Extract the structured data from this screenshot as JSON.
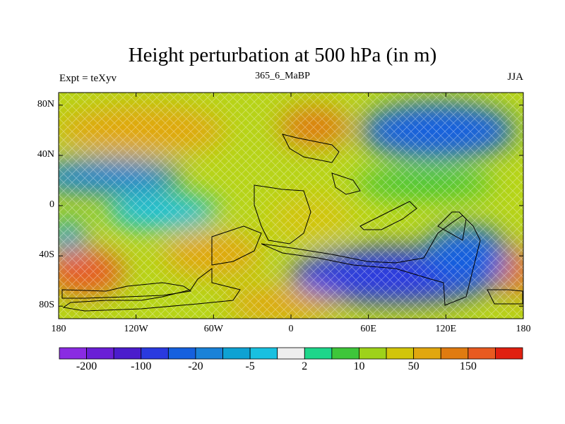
{
  "title": "Height perturbation at 500 hPa (in m)",
  "left_label": "Expt = teXyv",
  "center_label": "365_6_MaBP",
  "right_label": "JJA",
  "map": {
    "lat_ticks": [
      {
        "label": "80N",
        "value": 80
      },
      {
        "label": "40N",
        "value": 40
      },
      {
        "label": "0",
        "value": 0
      },
      {
        "label": "40S",
        "value": -40
      },
      {
        "label": "80S",
        "value": -80
      }
    ],
    "lon_ticks": [
      {
        "label": "180",
        "value": -180
      },
      {
        "label": "120W",
        "value": -120
      },
      {
        "label": "60W",
        "value": -60
      },
      {
        "label": "0",
        "value": 0
      },
      {
        "label": "60E",
        "value": 60
      },
      {
        "label": "120E",
        "value": 120
      },
      {
        "label": "180",
        "value": 180
      }
    ],
    "lon_range": [
      -180,
      180
    ],
    "lat_range": [
      -90,
      90
    ]
  },
  "colorbar": {
    "colors": [
      "#8a2be2",
      "#6a1fd6",
      "#4b1ccc",
      "#2a3adf",
      "#1560de",
      "#1a82d8",
      "#0ea2d3",
      "#19c0e0",
      "#eeeeee",
      "#1ed68a",
      "#3ec63a",
      "#9ed21a",
      "#d2c50a",
      "#e1a70f",
      "#e07b10",
      "#e85a20",
      "#e02010"
    ],
    "labels": [
      {
        "text": "-200",
        "index": 1
      },
      {
        "text": "-100",
        "index": 3
      },
      {
        "text": "-20",
        "index": 5
      },
      {
        "text": "-5",
        "index": 7
      },
      {
        "text": "2",
        "index": 9
      },
      {
        "text": "10",
        "index": 11
      },
      {
        "text": "50",
        "index": 13
      },
      {
        "text": "150",
        "index": 15
      }
    ]
  }
}
